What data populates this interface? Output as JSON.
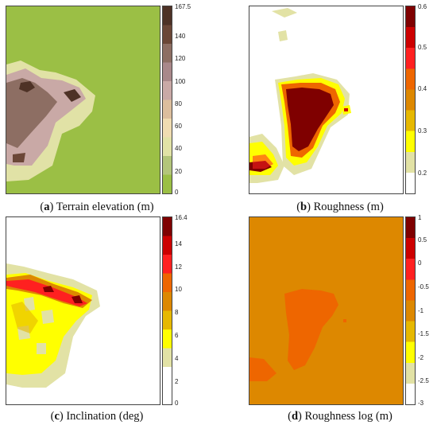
{
  "chart_data": [
    {
      "type": "heatmap",
      "panel_label": "a",
      "caption": "Terrain elevation (m)",
      "quantity": "Terrain elevation",
      "unit": "m",
      "colorbar": {
        "ticks": [
          "167.5",
          "140",
          "120",
          "100",
          "80",
          "60",
          "40",
          "20",
          "0"
        ],
        "tick_values": [
          167.5,
          140,
          120,
          100,
          80,
          60,
          40,
          20,
          0
        ],
        "range": [
          0,
          167.5
        ],
        "bands_bottom_to_top": [
          "#9bbf45",
          "#b3c57a",
          "#e1e2a6",
          "#f0dcb1",
          "#dcbe9d",
          "#c9a9a6",
          "#a9888a",
          "#8d6e63",
          "#6b4737",
          "#4e3226"
        ]
      },
      "background_value": 5
    },
    {
      "type": "heatmap",
      "panel_label": "b",
      "caption": "Roughness (m)",
      "quantity": "Roughness",
      "unit": "m",
      "colorbar": {
        "ticks": [
          "0.6",
          "0.5",
          "0.4",
          "0.3",
          "0.2"
        ],
        "tick_values": [
          0.6,
          0.5,
          0.4,
          0.3,
          0.2
        ],
        "range": [
          0.15,
          0.6
        ],
        "bands_bottom_to_top": [
          "#ffffff",
          "#e2e2a5",
          "#ffff00",
          "#e6b800",
          "#dd8800",
          "#ee6600",
          "#ff2020",
          "#cc0000",
          "#7f0000"
        ]
      },
      "background_value": 0.15
    },
    {
      "type": "heatmap",
      "panel_label": "c",
      "caption": "Inclination (deg)",
      "quantity": "Inclination",
      "unit": "deg",
      "colorbar": {
        "ticks": [
          "16.4",
          "14",
          "12",
          "10",
          "8",
          "6",
          "4",
          "2",
          "0"
        ],
        "tick_values": [
          16.4,
          14,
          12,
          10,
          8,
          6,
          4,
          2,
          0
        ],
        "range": [
          0,
          16.4
        ],
        "bands_bottom_to_top": [
          "#ffffff",
          "#ffffff",
          "#e2e2a5",
          "#ffff00",
          "#e6b800",
          "#dd8800",
          "#ee6600",
          "#ff2020",
          "#cc0000",
          "#7f0000"
        ]
      },
      "background_value": 0
    },
    {
      "type": "heatmap",
      "panel_label": "d",
      "caption": "Roughness log (m)",
      "quantity": "Roughness log",
      "unit": "m",
      "colorbar": {
        "ticks": [
          "1",
          "0.5",
          "0",
          "-0.5",
          "-1",
          "-1.5",
          "-2",
          "-2.5",
          "-3"
        ],
        "tick_values": [
          1,
          0.5,
          0,
          -0.5,
          -1,
          -1.5,
          -2,
          -2.5,
          -3
        ],
        "range": [
          -3,
          1
        ],
        "bands_bottom_to_top": [
          "#ffffff",
          "#e2e2a5",
          "#ffff00",
          "#e6b800",
          "#dd8800",
          "#ee6600",
          "#ff2020",
          "#cc0000",
          "#7f0000"
        ]
      },
      "background_value": -1
    }
  ]
}
